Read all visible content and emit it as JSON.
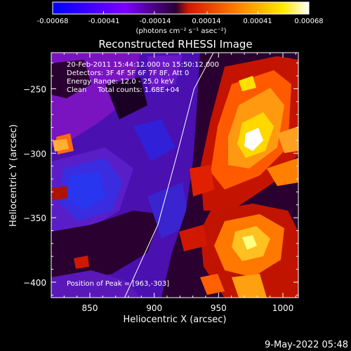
{
  "colorbar": {
    "tick_labels": [
      "-0.00068",
      "-0.00041",
      "-0.00014",
      "0.00014",
      "0.00041",
      "0.00068"
    ],
    "tick_values": [
      -0.00068,
      -0.00041,
      -0.00014,
      0.00014,
      0.00041,
      0.00068
    ],
    "range": [
      -0.00068,
      0.00068
    ],
    "units": "(photons cm⁻² s⁻¹ asec⁻²)",
    "colors": [
      "#0000ff",
      "#7b00ff",
      "#2a0033",
      "#d01800",
      "#ff8000",
      "#ffe900",
      "#ffffff"
    ]
  },
  "chart_data": {
    "type": "heatmap",
    "title": "Reconstructed RHESSI Image",
    "xlabel": "Heliocentric X (arcsec)",
    "ylabel": "Heliocentric Y (arcsec)",
    "xlim": [
      820,
      1012
    ],
    "ylim": [
      -412,
      -222
    ],
    "x_ticks": [
      850,
      900,
      950,
      1000
    ],
    "y_ticks": [
      -250,
      -300,
      -350,
      -400
    ],
    "x_tick_labels": [
      "850",
      "900",
      "950",
      "1000"
    ],
    "y_tick_labels": [
      "−250",
      "−300",
      "−350",
      "−400"
    ],
    "limb_points": [
      [
        877,
        -412
      ],
      [
        903,
        -355
      ],
      [
        918,
        -300
      ],
      [
        931,
        -250
      ],
      [
        946,
        -222
      ]
    ],
    "peak_position": [
      963,
      -303
    ],
    "annotations": [
      "20-Feb-2011 15:44:12.000 to 15:50:12.000",
      "Detectors: 3F 4F 5F 6F 7F 8F, Att 0",
      "Energy Range: 12.0 - 25.0 keV",
      "Clean     Total counts: 1.68E+04"
    ],
    "peak_label": "Position of Peak = [963,-303]"
  },
  "footer": {
    "date": "9-May-2022 05:48"
  }
}
